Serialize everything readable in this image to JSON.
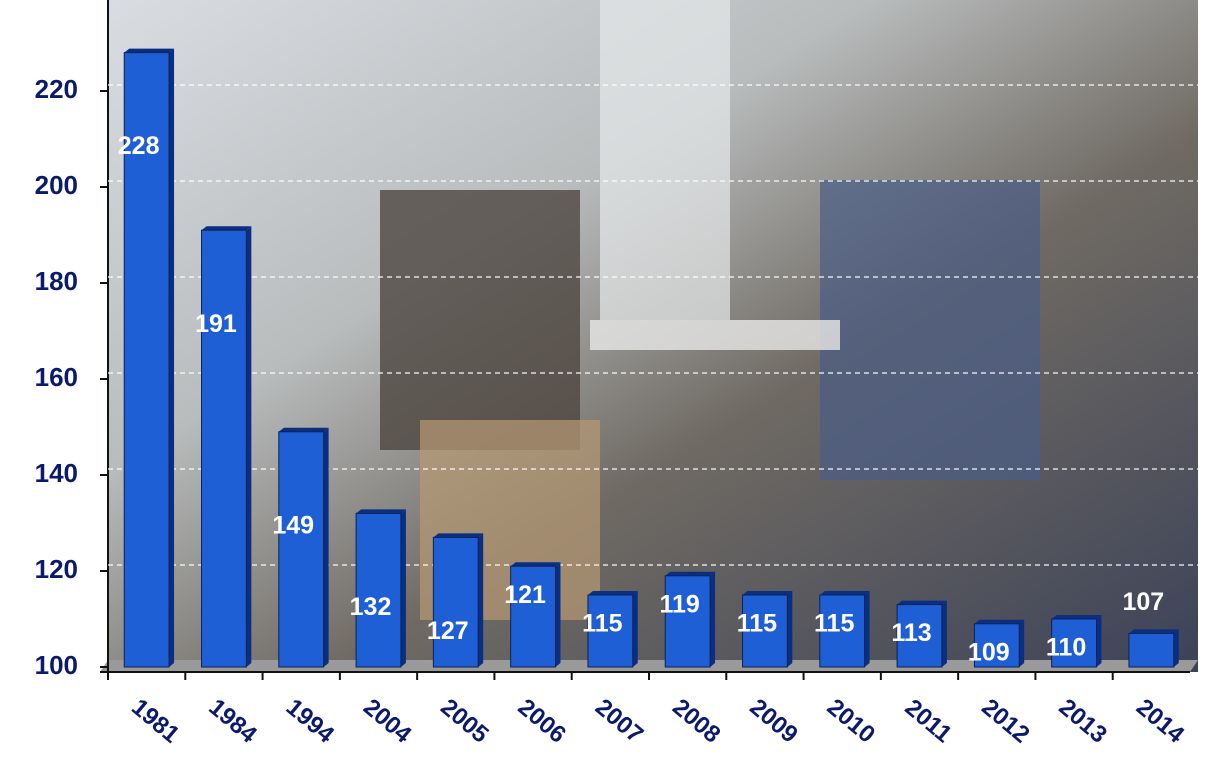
{
  "chart_data": {
    "type": "bar",
    "categories": [
      "1981",
      "1984",
      "1994",
      "2004",
      "2005",
      "2006",
      "2007",
      "2008",
      "2009",
      "2010",
      "2011",
      "2012",
      "2013",
      "2014"
    ],
    "values": [
      228,
      191,
      149,
      132,
      127,
      121,
      115,
      119,
      115,
      115,
      113,
      109,
      110,
      107
    ],
    "color": "#1f5fd6",
    "ylim": [
      100,
      240
    ],
    "yticks": [
      100,
      120,
      140,
      160,
      180,
      200,
      220
    ],
    "grid": true
  }
}
